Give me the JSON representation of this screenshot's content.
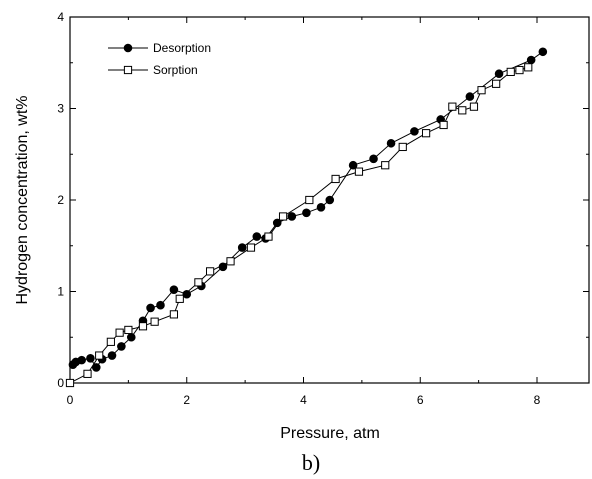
{
  "chart_data": {
    "type": "line",
    "xlabel": "Pressure, atm",
    "ylabel": "Hydrogen concentration, wt%",
    "panel_label": "b)",
    "xlim": [
      0,
      9
    ],
    "ylim": [
      0,
      4
    ],
    "x_ticks": [
      0,
      2,
      4,
      6,
      8
    ],
    "y_ticks": [
      0,
      1,
      2,
      3,
      4
    ],
    "x_tick_labels": [
      "0",
      "2",
      "4",
      "6",
      "8"
    ],
    "y_tick_labels": [
      "0",
      "1",
      "2",
      "3",
      "4"
    ],
    "legend_position": "top-left",
    "series": [
      {
        "name": "Desorption",
        "marker": "filled-circle",
        "color": "#000000",
        "x": [
          0.05,
          0.1,
          0.2,
          0.35,
          0.45,
          0.55,
          0.72,
          0.88,
          1.05,
          1.25,
          1.38,
          1.55,
          1.78,
          2.0,
          2.25,
          2.62,
          2.95,
          3.2,
          3.35,
          3.55,
          3.8,
          4.05,
          4.3,
          4.45,
          4.85,
          5.2,
          5.5,
          5.9,
          6.35,
          6.85,
          7.35,
          7.9,
          8.1
        ],
        "y": [
          0.2,
          0.23,
          0.25,
          0.27,
          0.17,
          0.26,
          0.3,
          0.4,
          0.5,
          0.68,
          0.82,
          0.85,
          1.02,
          0.97,
          1.06,
          1.27,
          1.48,
          1.6,
          1.58,
          1.75,
          1.82,
          1.86,
          1.92,
          2.0,
          2.38,
          2.45,
          2.62,
          2.75,
          2.88,
          3.13,
          3.38,
          3.53,
          3.62
        ]
      },
      {
        "name": "Sorption",
        "marker": "open-square",
        "color": "#000000",
        "x": [
          0.0,
          0.3,
          0.5,
          0.7,
          0.85,
          1.0,
          1.25,
          1.45,
          1.78,
          1.88,
          2.2,
          2.4,
          2.75,
          3.1,
          3.4,
          3.65,
          4.1,
          4.55,
          4.95,
          5.4,
          5.7,
          6.1,
          6.4,
          6.55,
          6.72,
          6.92,
          7.05,
          7.3,
          7.55,
          7.7,
          7.85
        ],
        "y": [
          0.0,
          0.1,
          0.3,
          0.45,
          0.55,
          0.58,
          0.62,
          0.67,
          0.75,
          0.92,
          1.1,
          1.22,
          1.33,
          1.48,
          1.6,
          1.82,
          2.0,
          2.23,
          2.31,
          2.38,
          2.58,
          2.73,
          2.82,
          3.02,
          2.98,
          3.02,
          3.2,
          3.27,
          3.4,
          3.42,
          3.45
        ]
      }
    ]
  }
}
